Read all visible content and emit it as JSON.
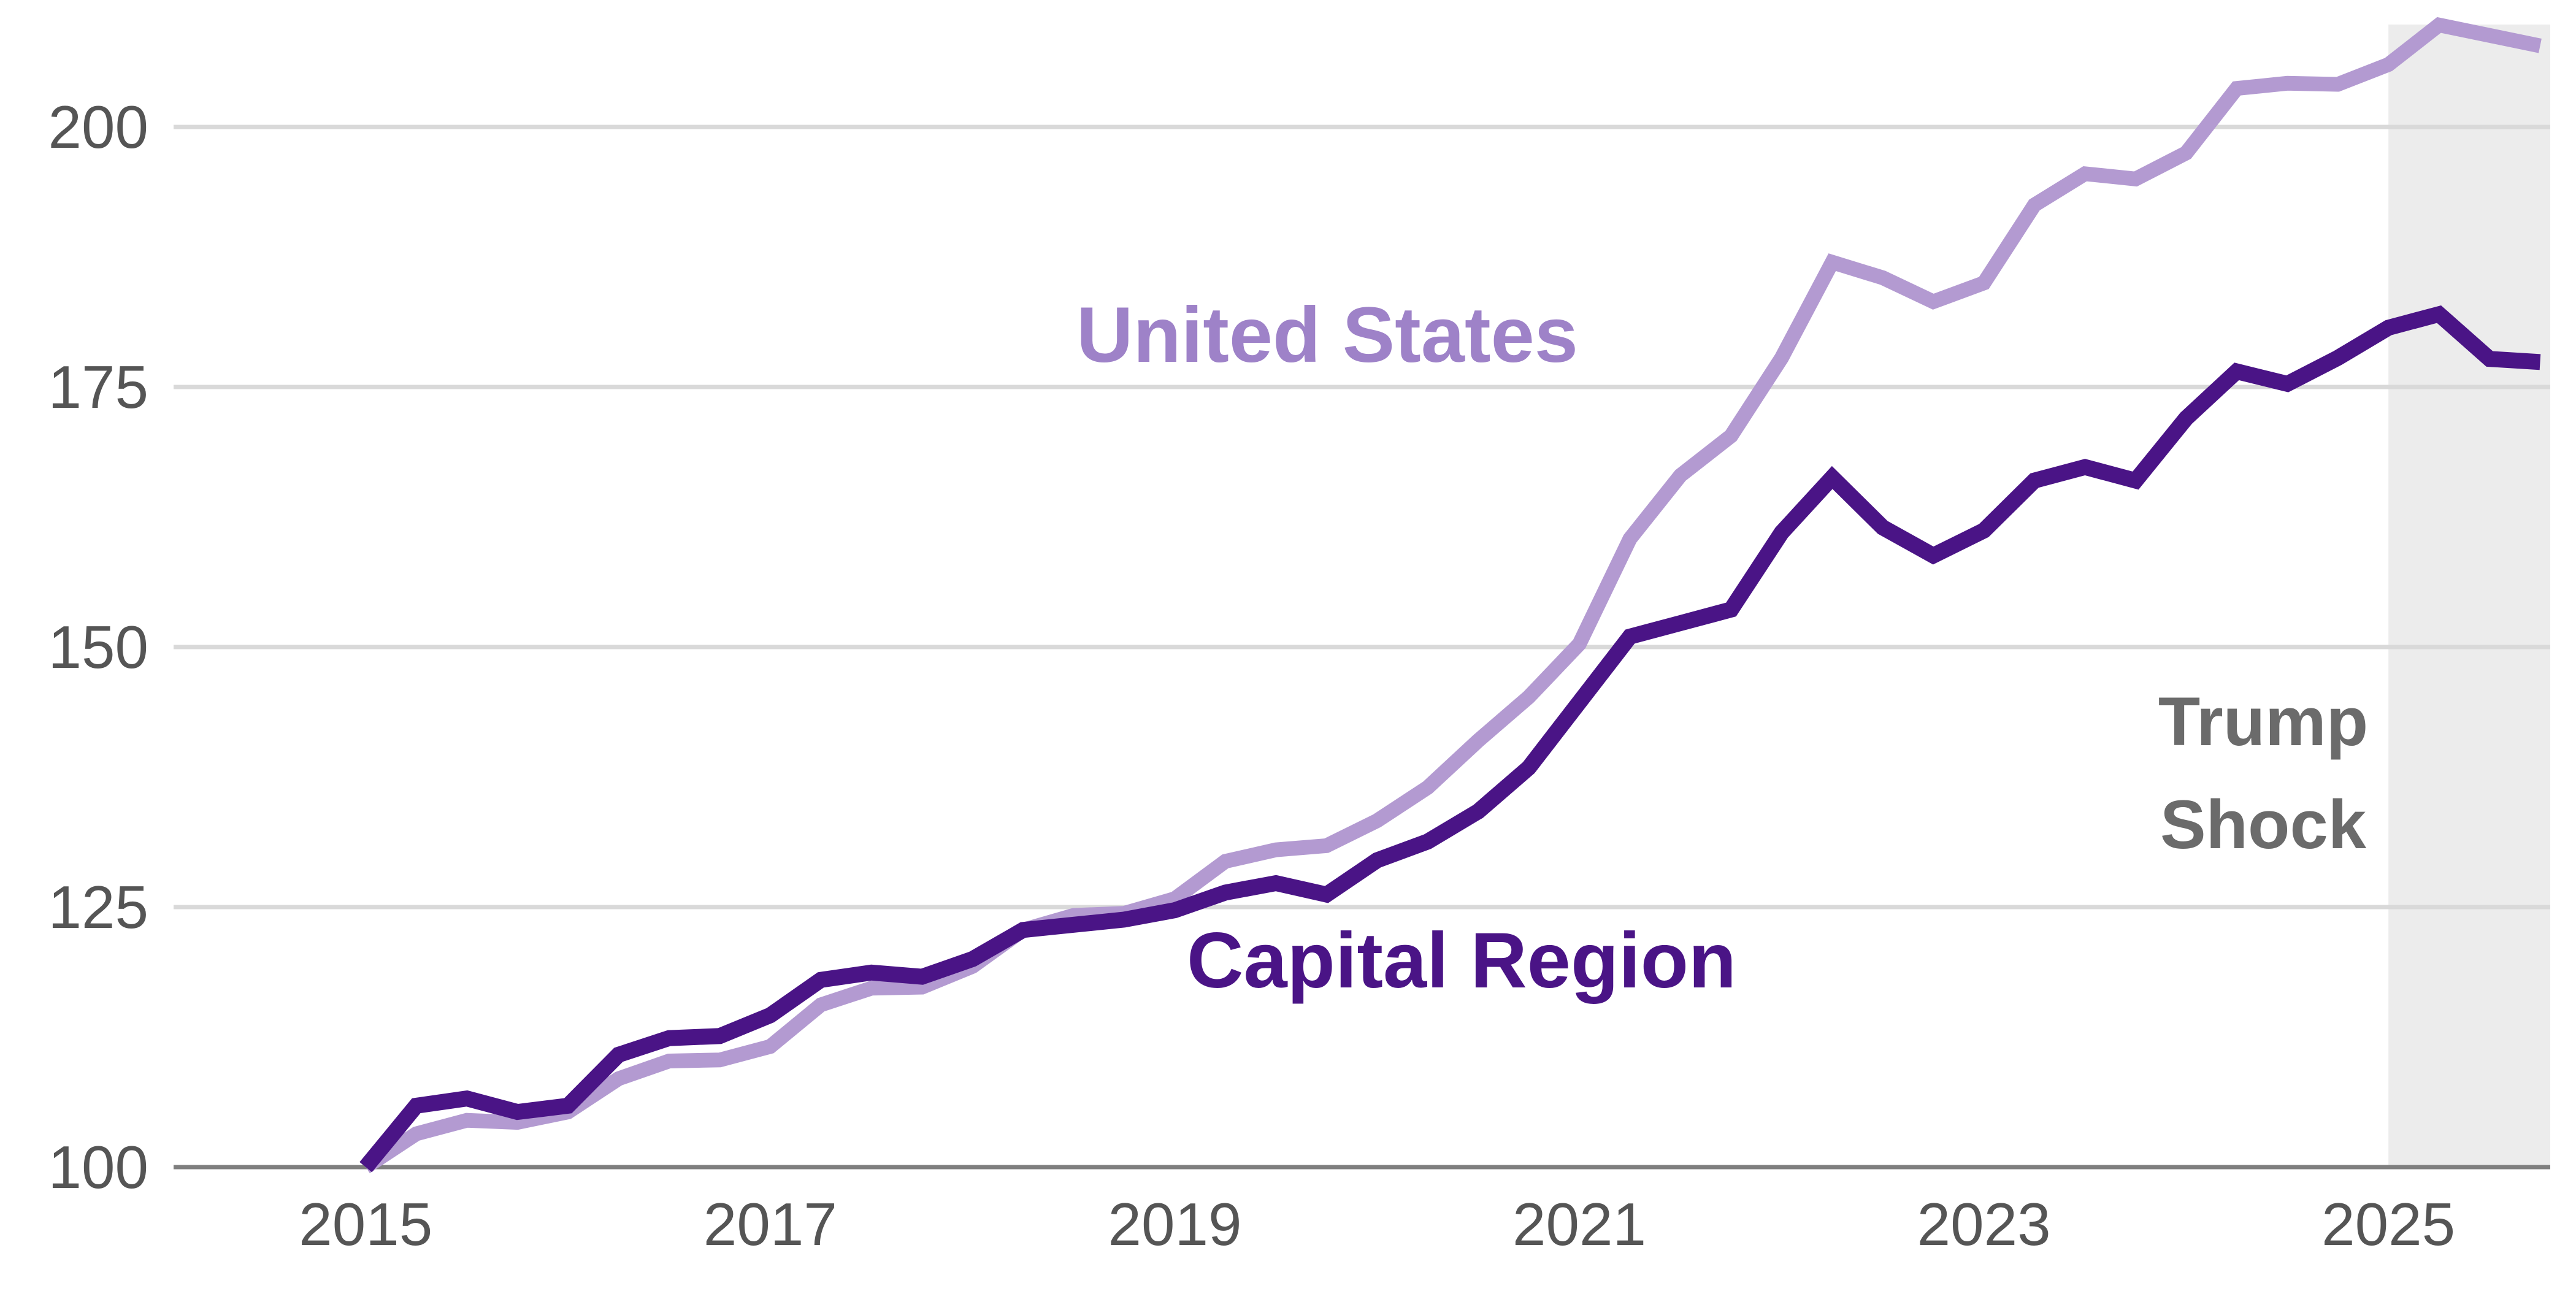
{
  "chart_data": {
    "type": "line",
    "title": "",
    "xlabel": "",
    "ylabel": "",
    "xlim": [
      2014.05,
      2025.8
    ],
    "ylim": [
      100,
      210
    ],
    "y_ticks": [
      100,
      125,
      150,
      175,
      200
    ],
    "x_ticks": [
      2015,
      2017,
      2019,
      2021,
      2023,
      2025
    ],
    "grid": "horizontal",
    "legend": "inline-labels",
    "series": [
      {
        "name": "United States",
        "color": "#b39ad1",
        "x": [
          2015.0,
          2015.25,
          2015.5,
          2015.75,
          2016.0,
          2016.25,
          2016.5,
          2016.75,
          2017.0,
          2017.25,
          2017.5,
          2017.75,
          2018.0,
          2018.25,
          2018.5,
          2018.75,
          2019.0,
          2019.25,
          2019.5,
          2019.75,
          2020.0,
          2020.25,
          2020.5,
          2020.75,
          2021.0,
          2021.25,
          2021.5,
          2021.75,
          2022.0,
          2022.25,
          2022.5,
          2022.75,
          2023.0,
          2023.25,
          2023.5,
          2023.75,
          2024.0,
          2024.25,
          2024.5,
          2024.75,
          2025.0,
          2025.25,
          2025.5,
          2025.75
        ],
        "values": [
          100.0,
          103.2,
          104.5,
          104.3,
          105.3,
          108.5,
          110.2,
          110.3,
          111.6,
          115.6,
          117.2,
          117.3,
          119.3,
          122.8,
          124.2,
          124.4,
          125.8,
          129.4,
          130.5,
          130.9,
          133.3,
          136.5,
          141.0,
          145.2,
          150.3,
          160.4,
          166.5,
          170.3,
          177.8,
          187.0,
          185.5,
          183.2,
          185.0,
          192.5,
          195.5,
          195.0,
          197.5,
          203.7,
          204.2,
          204.1,
          206.0,
          209.8,
          208.8,
          207.8
        ]
      },
      {
        "name": "Capital Region",
        "color": "#4a1486",
        "x": [
          2015.0,
          2015.25,
          2015.5,
          2015.75,
          2016.0,
          2016.25,
          2016.5,
          2016.75,
          2017.0,
          2017.25,
          2017.5,
          2017.75,
          2018.0,
          2018.25,
          2018.5,
          2018.75,
          2019.0,
          2019.25,
          2019.5,
          2019.75,
          2020.0,
          2020.25,
          2020.5,
          2020.75,
          2021.0,
          2021.25,
          2021.5,
          2021.75,
          2022.0,
          2022.25,
          2022.5,
          2022.75,
          2023.0,
          2023.25,
          2023.5,
          2023.75,
          2024.0,
          2024.25,
          2024.5,
          2024.75,
          2025.0,
          2025.25,
          2025.5,
          2025.75
        ],
        "values": [
          100.0,
          105.9,
          106.6,
          105.3,
          105.9,
          110.8,
          112.4,
          112.6,
          114.6,
          118.0,
          118.7,
          118.3,
          120.0,
          122.8,
          123.3,
          123.8,
          124.7,
          126.4,
          127.3,
          126.2,
          129.5,
          131.3,
          134.2,
          138.4,
          144.7,
          151.0,
          152.3,
          153.6,
          161.0,
          166.3,
          161.5,
          158.8,
          161.2,
          166.0,
          167.3,
          166.0,
          172.0,
          176.5,
          175.3,
          177.8,
          180.7,
          182.0,
          177.7,
          177.4
        ]
      }
    ],
    "annotations": [
      {
        "type": "shaded-region",
        "x_range": [
          2025.0,
          2025.8
        ],
        "text_lines": [
          "Trump",
          "Shock"
        ]
      }
    ]
  },
  "labels": {
    "united_states": "United States",
    "capital_region": "Capital Region",
    "shock_line1": "Trump",
    "shock_line2": "Shock"
  },
  "colors": {
    "united_states": "#b39ad1",
    "united_states_label": "#9e82c8",
    "capital_region": "#4a1486",
    "grid": "#d9d9d9",
    "axis": "#7f7f7f",
    "shade": "#ececec"
  }
}
